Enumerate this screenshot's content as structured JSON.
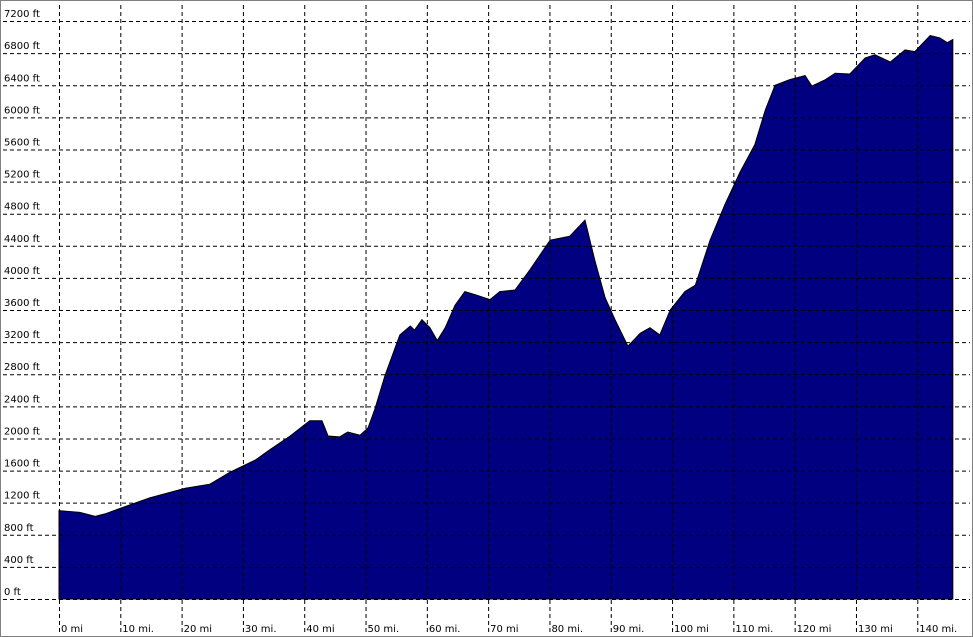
{
  "chart_data": {
    "type": "area",
    "color": "#000080",
    "grid": true,
    "x": [
      0,
      3.4,
      5.9,
      7.5,
      10,
      14.8,
      20.6,
      24.6,
      27.9,
      32,
      34.4,
      37.7,
      40.9,
      42.9,
      43.9,
      45.8,
      47.1,
      49.1,
      50.4,
      51.5,
      53.2,
      55.6,
      57.3,
      58,
      59.2,
      60.5,
      61.7,
      63,
      64.6,
      66.2,
      67.9,
      70.3,
      71.9,
      74.4,
      76.8,
      80.1,
      83.3,
      85.8,
      87.4,
      89.1,
      90.7,
      92.8,
      94.8,
      96.4,
      98,
      99.7,
      102.1,
      103.8,
      106.2,
      108.6,
      111.1,
      113.5,
      115.2,
      116.8,
      119.2,
      121.7,
      122.8,
      125,
      126.6,
      129,
      131.5,
      133.1,
      135.6,
      138,
      139.6,
      142.1,
      143.7,
      144.9,
      145.8
    ],
    "values": [
      1100,
      1080,
      1030,
      1060,
      1130,
      1260,
      1380,
      1430,
      1580,
      1730,
      1860,
      2030,
      2220,
      2220,
      2030,
      2020,
      2080,
      2040,
      2130,
      2360,
      2790,
      3290,
      3400,
      3350,
      3480,
      3380,
      3220,
      3380,
      3660,
      3830,
      3790,
      3730,
      3830,
      3850,
      4100,
      4470,
      4520,
      4720,
      4220,
      3750,
      3480,
      3150,
      3310,
      3380,
      3290,
      3600,
      3830,
      3910,
      4470,
      4910,
      5320,
      5660,
      6090,
      6400,
      6470,
      6520,
      6390,
      6470,
      6550,
      6540,
      6740,
      6780,
      6690,
      6840,
      6820,
      7020,
      6990,
      6930,
      6970
    ],
    "xlim": [
      0,
      148.6
    ],
    "ylim": [
      0,
      7400
    ],
    "xticks": [
      {
        "value": 0,
        "label": "0 mi"
      },
      {
        "value": 10,
        "label": "10 mi."
      },
      {
        "value": 20,
        "label": "20 mi"
      },
      {
        "value": 30,
        "label": "30 mi."
      },
      {
        "value": 40,
        "label": "40 mi"
      },
      {
        "value": 50,
        "label": "50 mi."
      },
      {
        "value": 60,
        "label": "60 mi."
      },
      {
        "value": 70,
        "label": "70 mi"
      },
      {
        "value": 80,
        "label": "80 mi."
      },
      {
        "value": 90,
        "label": "90 mi."
      },
      {
        "value": 100,
        "label": "100 mi"
      },
      {
        "value": 110,
        "label": "110 mi."
      },
      {
        "value": 120,
        "label": "120 mi"
      },
      {
        "value": 130,
        "label": "130 mi"
      },
      {
        "value": 140,
        "label": "140 mi."
      }
    ],
    "yticks": [
      {
        "value": 0,
        "label": "0 ft"
      },
      {
        "value": 400,
        "label": "400 ft"
      },
      {
        "value": 800,
        "label": "800 ft"
      },
      {
        "value": 1200,
        "label": "1200 ft"
      },
      {
        "value": 1600,
        "label": "1600 ft"
      },
      {
        "value": 2000,
        "label": "2000 ft"
      },
      {
        "value": 2400,
        "label": "2400 ft"
      },
      {
        "value": 2800,
        "label": "2800 ft"
      },
      {
        "value": 3200,
        "label": "3200 ft"
      },
      {
        "value": 3600,
        "label": "3600 ft"
      },
      {
        "value": 4000,
        "label": "4000 ft"
      },
      {
        "value": 4400,
        "label": "4400 ft"
      },
      {
        "value": 4800,
        "label": "4800 ft"
      },
      {
        "value": 5200,
        "label": "5200 ft"
      },
      {
        "value": 5600,
        "label": "5600 ft"
      },
      {
        "value": 6000,
        "label": "6000 ft"
      },
      {
        "value": 6400,
        "label": "6400 ft"
      },
      {
        "value": 6800,
        "label": "6800 ft"
      },
      {
        "value": 7200,
        "label": "7200 ft"
      }
    ]
  }
}
